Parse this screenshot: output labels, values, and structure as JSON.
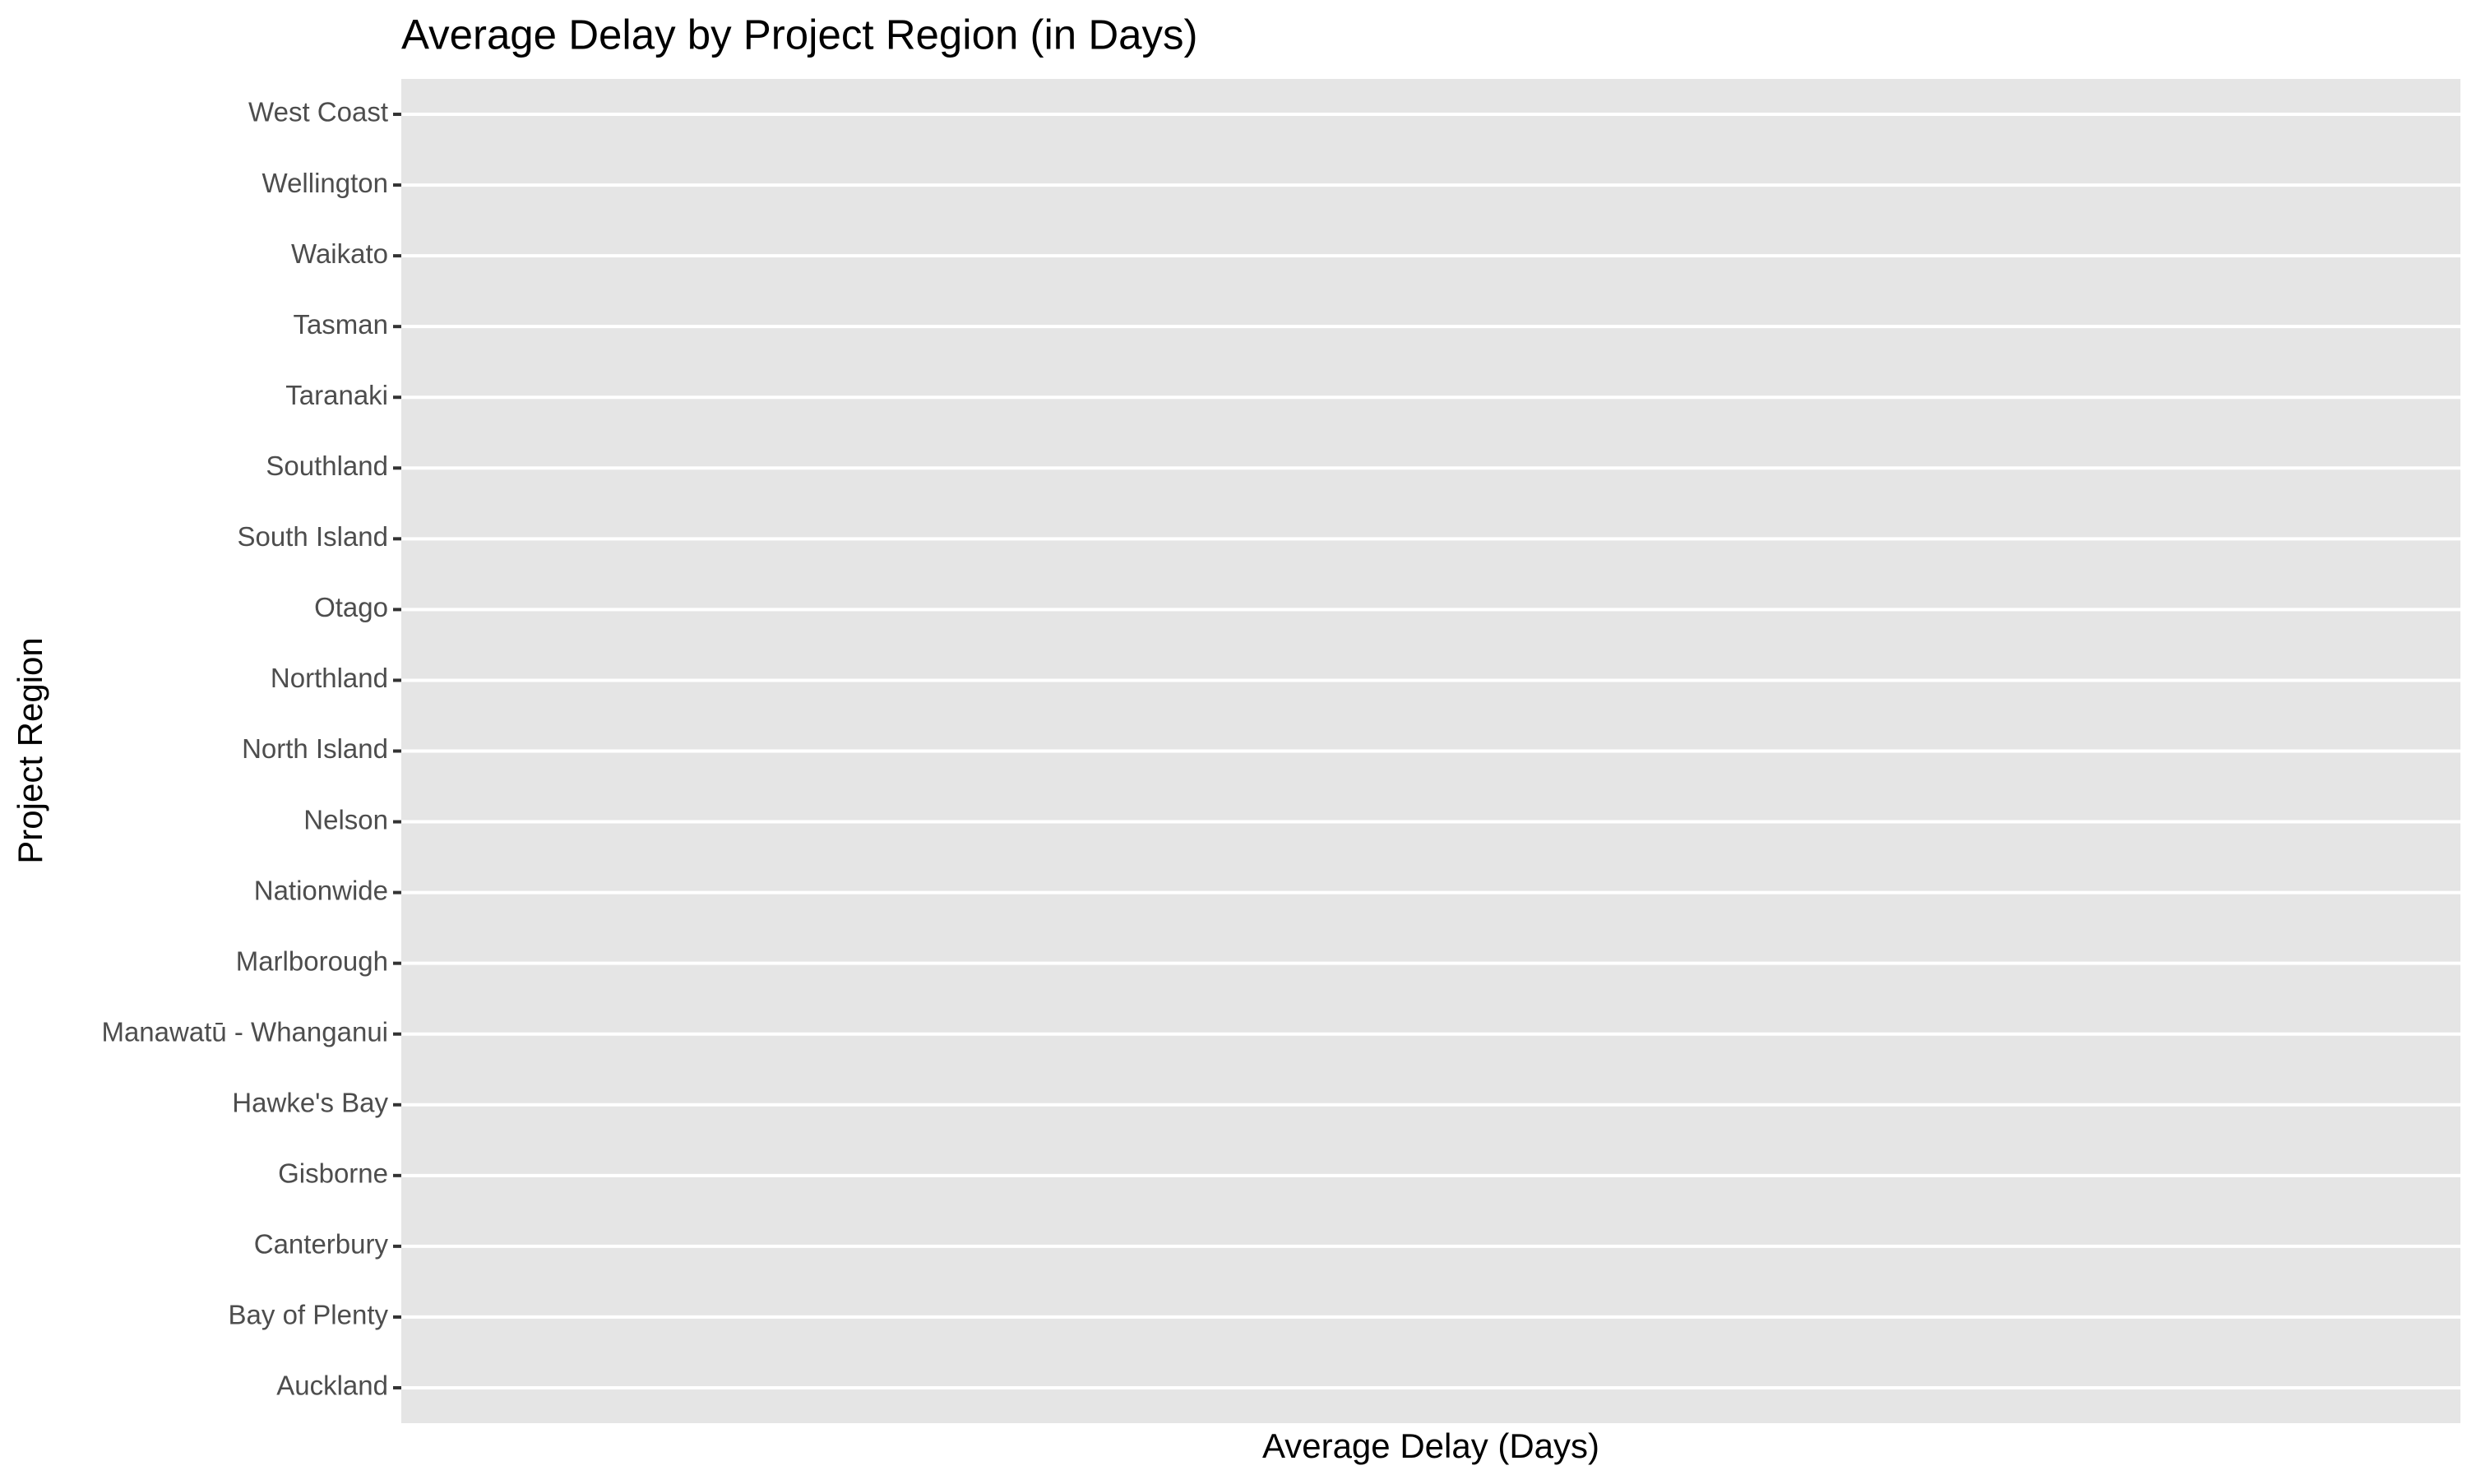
{
  "chart_data": {
    "type": "bar",
    "orientation": "horizontal",
    "title": "Average Delay by Project Region (in Days)",
    "xlabel": "Average Delay (Days)",
    "ylabel": "Project Region",
    "categories": [
      "Auckland",
      "Bay of Plenty",
      "Canterbury",
      "Gisborne",
      "Hawke's Bay",
      "Manawatū - Whanganui",
      "Marlborough",
      "Nationwide",
      "Nelson",
      "North Island",
      "Northland",
      "Otago",
      "South Island",
      "Southland",
      "Taranaki",
      "Tasman",
      "Waikato",
      "Wellington",
      "West Coast"
    ],
    "grid": true
  }
}
